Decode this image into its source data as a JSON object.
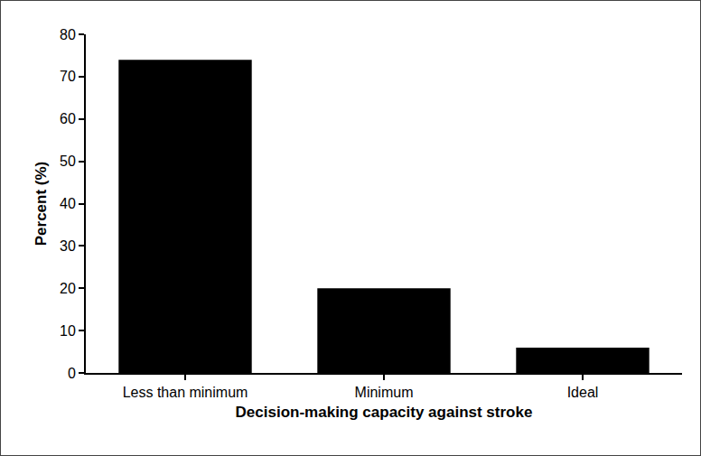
{
  "chart_data": {
    "type": "bar",
    "x_label": "Decision-making capacity against stroke",
    "y_label": "Percent (%)",
    "categories": [
      "Less than minimum",
      "Minimum",
      "Ideal"
    ],
    "values": [
      74,
      20,
      6
    ],
    "color": "#000000",
    "ylim": [
      0,
      80
    ],
    "yticks": [
      0,
      10,
      20,
      30,
      40,
      50,
      60,
      70,
      80
    ],
    "grid": false
  }
}
